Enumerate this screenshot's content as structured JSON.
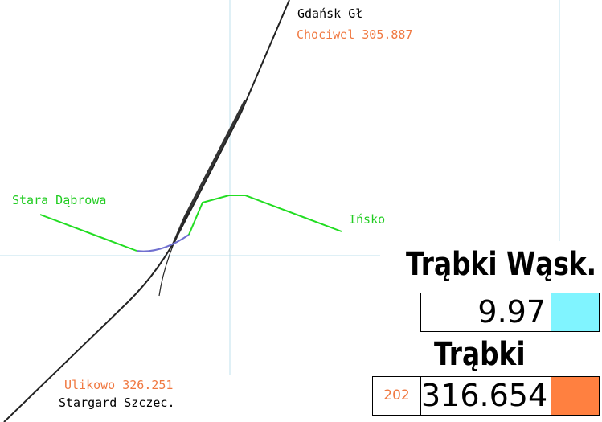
{
  "map": {
    "labels": {
      "north_station": "Gdańsk Gł",
      "north_km": "Chociwel 305.887",
      "west_station": "Stara Dąbrowa",
      "east_station": "Ińsko",
      "south_km": "Ulikowo 326.251",
      "south_station": "Stargard Szczec."
    },
    "colors": {
      "track": "#000000",
      "branch": "#22dd22",
      "branch_highlight": "#7070d0",
      "grid": "#bfe0ee",
      "km_label": "#f07840"
    }
  },
  "panel": {
    "station_1": {
      "name": "Trąbki Wąsk.",
      "value": "9.97",
      "color": "#80f4ff"
    },
    "station_2": {
      "name": "Trąbki",
      "code": "202",
      "value": "316.654",
      "color": "#ff8040"
    }
  }
}
